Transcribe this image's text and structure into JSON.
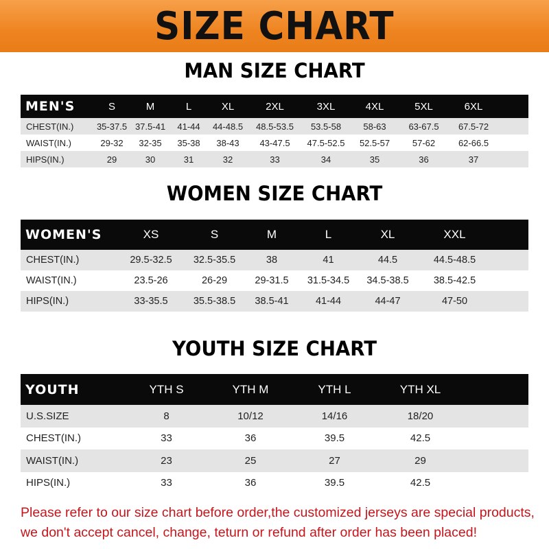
{
  "title": "SIZE CHART",
  "colors": {
    "banner": "#ee8420",
    "header_row": "#0a0a0a",
    "note": "#c4161c"
  },
  "men": {
    "title": "MAN SIZE CHART",
    "header": [
      "MEN'S",
      "S",
      "M",
      "L",
      "XL",
      "2XL",
      "3XL",
      "4XL",
      "5XL",
      "6XL"
    ],
    "rows": [
      [
        "CHEST(IN.)",
        "35-37.5",
        "37.5-41",
        "41-44",
        "44-48.5",
        "48.5-53.5",
        "53.5-58",
        "58-63",
        "63-67.5",
        "67.5-72"
      ],
      [
        "WAIST(IN.)",
        "29-32",
        "32-35",
        "35-38",
        "38-43",
        "43-47.5",
        "47.5-52.5",
        "52.5-57",
        "57-62",
        "62-66.5"
      ],
      [
        "HIPS(IN.)",
        "29",
        "30",
        "31",
        "32",
        "33",
        "34",
        "35",
        "36",
        "37"
      ]
    ]
  },
  "women": {
    "title": "WOMEN SIZE CHART",
    "header": [
      "WOMEN'S",
      "XS",
      "S",
      "M",
      "L",
      "XL",
      "XXL"
    ],
    "rows": [
      [
        "CHEST(IN.)",
        "29.5-32.5",
        "32.5-35.5",
        "38",
        "41",
        "44.5",
        "44.5-48.5"
      ],
      [
        "WAIST(IN.)",
        "23.5-26",
        "26-29",
        "29-31.5",
        "31.5-34.5",
        "34.5-38.5",
        "38.5-42.5"
      ],
      [
        "HIPS(IN.)",
        "33-35.5",
        "35.5-38.5",
        "38.5-41",
        "41-44",
        "44-47",
        "47-50"
      ]
    ]
  },
  "youth": {
    "title": "YOUTH SIZE CHART",
    "header": [
      "YOUTH",
      "YTH S",
      "YTH M",
      "YTH L",
      "YTH XL"
    ],
    "rows": [
      [
        "U.S.SIZE",
        "8",
        "10/12",
        "14/16",
        "18/20"
      ],
      [
        "CHEST(IN.)",
        "33",
        "36",
        "39.5",
        "42.5"
      ],
      [
        "WAIST(IN.)",
        "23",
        "25",
        "27",
        "29"
      ],
      [
        "HIPS(IN.)",
        "33",
        "36",
        "39.5",
        "42.5"
      ]
    ]
  },
  "note": {
    "line1": "Please refer to our size chart before order,the customized jerseys are special products,",
    "line2": "we don't accept cancel, change, teturn or refund after order has been placed!"
  }
}
